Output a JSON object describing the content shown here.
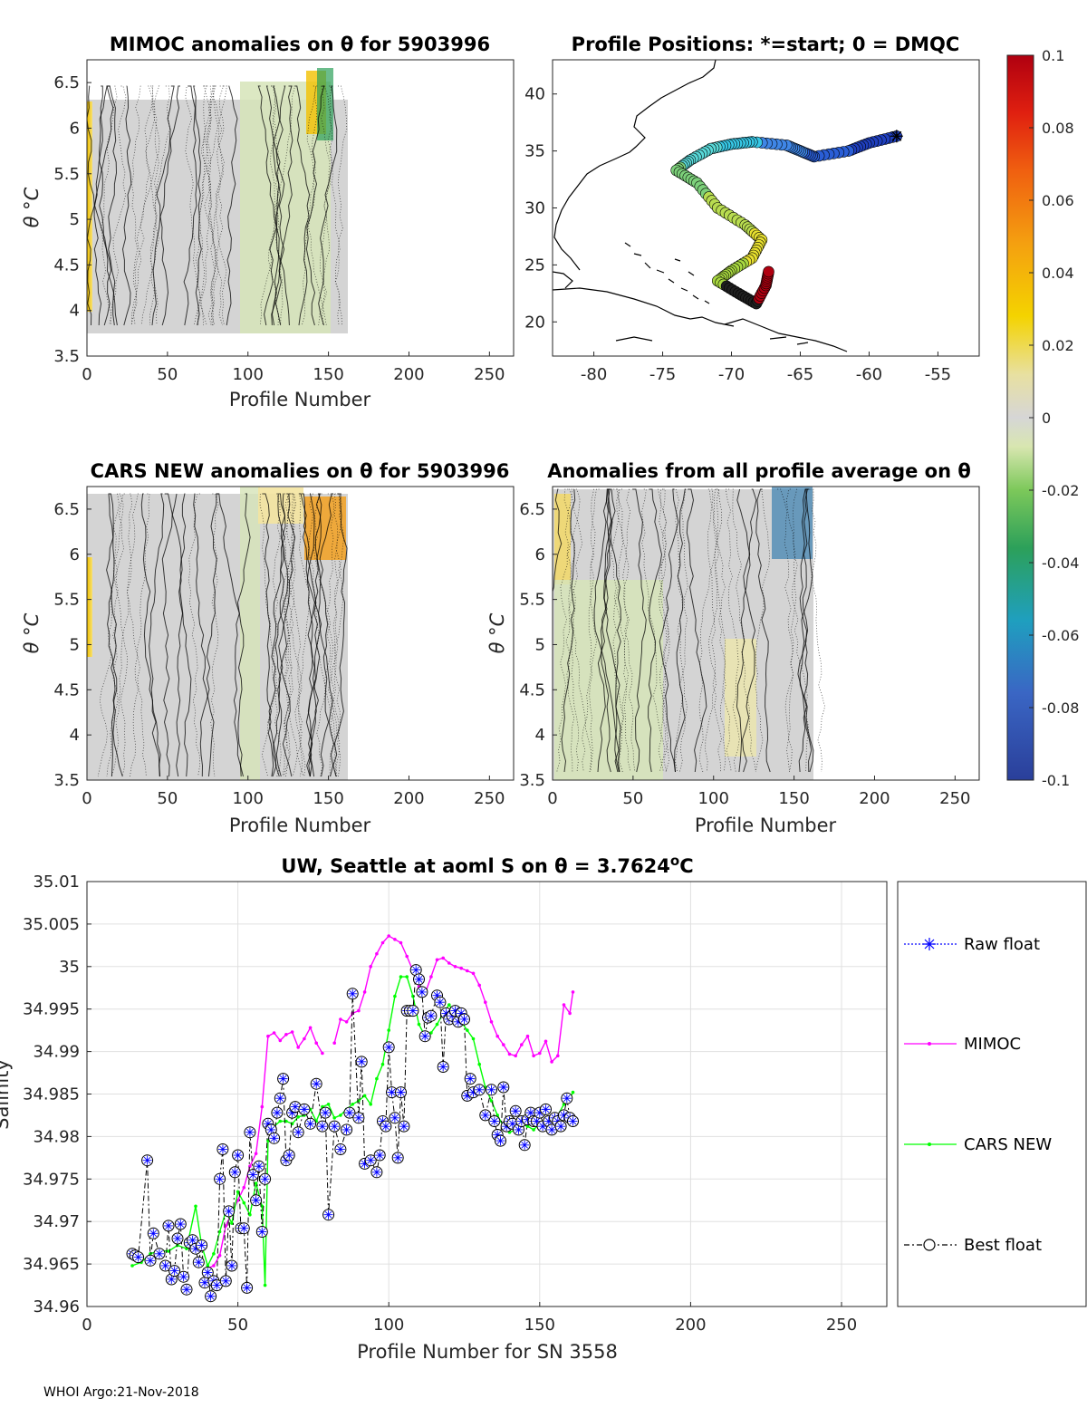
{
  "footer": "WHOI Argo:21-Nov-2018",
  "colors": {
    "raw_float": "#0000ff",
    "mimoc": "#ff00ff",
    "cars_new": "#00ff00",
    "best_float": "#000000"
  },
  "chart_data": [
    {
      "id": "mimoc_anom",
      "type": "heatmap",
      "title": "MIMOC anomalies on θ  for 5903996",
      "xlabel": "Profile Number",
      "ylabel": "θ °C",
      "xlim": [
        0,
        265
      ],
      "ylim": [
        3.5,
        6.75
      ],
      "xticks": [
        "0",
        "50",
        "100",
        "150",
        "200",
        "250"
      ],
      "yticks": [
        "3.5",
        "4",
        "4.5",
        "5",
        "5.5",
        "6",
        "6.5"
      ],
      "data_extent_profiles": [
        0,
        162
      ]
    },
    {
      "id": "positions",
      "type": "scatter",
      "title": "Profile Positions: *=start; 0 = DMQC",
      "xlabel": "",
      "ylabel": "",
      "xlim": [
        -83,
        -52
      ],
      "ylim": [
        17,
        43
      ],
      "xticks": [
        "-80",
        "-75",
        "-70",
        "-65",
        "-60",
        "-55"
      ],
      "yticks": [
        "20",
        "25",
        "30",
        "35",
        "40"
      ],
      "start_lon_lat": [
        -58,
        36.3
      ]
    },
    {
      "id": "colorbar",
      "type": "colorbar",
      "ticks": [
        "0.1",
        "0.08",
        "0.06",
        "0.04",
        "0.02",
        "0",
        "-0.02",
        "-0.04",
        "-0.06",
        "-0.08",
        "-0.1"
      ],
      "range": [
        -0.1,
        0.1
      ]
    },
    {
      "id": "cars_anom",
      "type": "heatmap",
      "title": "CARS NEW anomalies on θ for 5903996",
      "xlabel": "Profile Number",
      "ylabel": "θ °C",
      "xlim": [
        0,
        265
      ],
      "ylim": [
        3.5,
        6.75
      ],
      "xticks": [
        "0",
        "50",
        "100",
        "150",
        "200",
        "250"
      ],
      "yticks": [
        "3.5",
        "4",
        "4.5",
        "5",
        "5.5",
        "6",
        "6.5"
      ],
      "data_extent_profiles": [
        0,
        162
      ]
    },
    {
      "id": "avg_anom",
      "type": "heatmap",
      "title": "Anomalies from all profile average on θ",
      "xlabel": "Profile Number",
      "ylabel": "θ °C",
      "xlim": [
        0,
        265
      ],
      "ylim": [
        3.5,
        6.75
      ],
      "xticks": [
        "0",
        "50",
        "100",
        "150",
        "200",
        "250"
      ],
      "yticks": [
        "3.5",
        "4",
        "4.5",
        "5",
        "5.5",
        "6",
        "6.5"
      ],
      "data_extent_profiles": [
        0,
        162
      ]
    },
    {
      "id": "salinity",
      "type": "line",
      "title": "UW, Seattle at aoml S on θ = 3.7624",
      "title_sup": "o",
      "title_unit": "C",
      "xlabel": "Profile Number for SN 3558",
      "ylabel": "Salinity",
      "xlim": [
        0,
        265
      ],
      "ylim": [
        34.96,
        35.01
      ],
      "xticks": [
        "0",
        "50",
        "100",
        "150",
        "200",
        "250"
      ],
      "yticks": [
        "35.01",
        "35.005",
        "35",
        "34.995",
        "34.99",
        "34.985",
        "34.98",
        "34.975",
        "34.97",
        "34.965",
        "34.96"
      ],
      "legend": [
        "Raw float",
        "MIMOC",
        "CARS NEW",
        "Best float"
      ],
      "series": [
        {
          "name": "MIMOC",
          "x": [
            40,
            42,
            44,
            46,
            48,
            50,
            52,
            54,
            56,
            58,
            60,
            62,
            64,
            66,
            68,
            70,
            72,
            74,
            76,
            78,
            80,
            82,
            84,
            86,
            88,
            90,
            92,
            94,
            96,
            98,
            100,
            102,
            104,
            106,
            108,
            110,
            112,
            114,
            116,
            118,
            120,
            122,
            124,
            126,
            128,
            130,
            132,
            134,
            136,
            138,
            140,
            142,
            144,
            146,
            148,
            150,
            152,
            154,
            156,
            158,
            160,
            161
          ],
          "values": [
            34.9645,
            34.9648,
            34.966,
            34.9695,
            34.971,
            34.9725,
            34.974,
            34.9765,
            34.978,
            34.9835,
            34.9918,
            34.9922,
            34.9913,
            34.992,
            34.9923,
            34.9905,
            34.9915,
            34.9928,
            34.991,
            34.9898,
            null,
            34.991,
            34.9938,
            34.9935,
            34.9945,
            34.9948,
            34.997,
            35.0,
            35.0015,
            35.0028,
            35.0036,
            35.0032,
            35.0028,
            35.0012,
            34.9995,
            34.9976,
            34.9968,
            34.9988,
            35.0008,
            35.001,
            35.0004,
            35.0,
            34.9998,
            34.9995,
            34.9992,
            34.9978,
            34.9958,
            34.9935,
            34.9918,
            34.9908,
            34.9897,
            34.9895,
            34.9908,
            34.9918,
            34.9895,
            34.9898,
            34.9912,
            34.9888,
            34.9895,
            34.9955,
            34.9945,
            34.997
          ]
        },
        {
          "name": "CARS NEW",
          "x": [
            15,
            18,
            21,
            24,
            27,
            30,
            33,
            36,
            38,
            40,
            42,
            44,
            46,
            48,
            50,
            52,
            54,
            56,
            58,
            59,
            60,
            62,
            64,
            66,
            68,
            70,
            72,
            74,
            76,
            78,
            80,
            82,
            84,
            86,
            88,
            90,
            92,
            94,
            96,
            98,
            100,
            102,
            104,
            106,
            108,
            110,
            112,
            114,
            116,
            118,
            120,
            122,
            124,
            126,
            128,
            130,
            132,
            134,
            136,
            138,
            140,
            142,
            144,
            146,
            148,
            150,
            152,
            154,
            156,
            158,
            160,
            161
          ],
          "values": [
            34.9648,
            34.9652,
            34.9662,
            34.9666,
            34.9665,
            34.9672,
            34.9668,
            34.9718,
            34.9672,
            34.9648,
            34.9662,
            34.9688,
            34.9712,
            34.9698,
            34.9735,
            34.9722,
            34.9708,
            34.9745,
            34.9718,
            34.9625,
            34.9795,
            34.9812,
            34.9818,
            34.9818,
            34.9815,
            34.9823,
            34.9825,
            34.9832,
            34.9818,
            34.9835,
            34.9838,
            34.9822,
            34.9825,
            34.9832,
            34.9838,
            34.9842,
            34.9848,
            34.9838,
            34.9868,
            34.9885,
            34.9925,
            34.9965,
            34.9988,
            34.9988,
            34.9965,
            34.9932,
            34.9918,
            34.9922,
            34.9932,
            34.9945,
            34.9955,
            34.9944,
            34.9935,
            34.9925,
            34.9915,
            34.9885,
            34.9858,
            34.9842,
            34.9825,
            34.9812,
            34.9805,
            34.9808,
            34.9815,
            34.9812,
            34.9808,
            34.9815,
            34.9818,
            34.9812,
            34.9825,
            34.9838,
            34.9845,
            34.9852
          ]
        },
        {
          "name": "Best float",
          "x": [
            15,
            16,
            17,
            20,
            21,
            22,
            24,
            26,
            27,
            28,
            29,
            30,
            31,
            32,
            33,
            34,
            35,
            36,
            37,
            38,
            39,
            40,
            41,
            42,
            43,
            44,
            45,
            46,
            47,
            48,
            49,
            50,
            51,
            52,
            53,
            54,
            55,
            56,
            57,
            58,
            59,
            60,
            61,
            62,
            63,
            64,
            65,
            66,
            67,
            68,
            69,
            70,
            72,
            74,
            76,
            78,
            79,
            80,
            82,
            84,
            86,
            87,
            88,
            90,
            91,
            92,
            94,
            96,
            97,
            98,
            99,
            100,
            101,
            102,
            103,
            104,
            105,
            106,
            107,
            108,
            109,
            110,
            111,
            112,
            113,
            114,
            116,
            117,
            118,
            119,
            120,
            121,
            122,
            123,
            124,
            125,
            126,
            127,
            128,
            130,
            132,
            134,
            135,
            136,
            137,
            138,
            139,
            140,
            141,
            142,
            143,
            144,
            145,
            146,
            147,
            148,
            149,
            150,
            151,
            152,
            153,
            154,
            155,
            156,
            157,
            158,
            159,
            160,
            161
          ],
          "values": [
            34.9662,
            34.966,
            34.9658,
            34.9772,
            34.9654,
            34.9686,
            34.9662,
            34.9648,
            34.9695,
            34.9632,
            34.9642,
            34.968,
            34.9697,
            34.9635,
            34.962,
            34.9675,
            34.9678,
            34.9668,
            34.9652,
            34.9672,
            34.9628,
            34.964,
            34.9612,
            34.963,
            34.9625,
            34.975,
            34.9785,
            34.963,
            34.9712,
            34.9648,
            34.9758,
            34.9778,
            34.9692,
            34.9692,
            34.9622,
            34.9805,
            34.9755,
            34.9725,
            34.9765,
            34.9688,
            34.975,
            34.9815,
            34.9808,
            34.9798,
            34.9828,
            34.9845,
            34.9868,
            34.9772,
            34.9778,
            34.9828,
            34.9835,
            34.9805,
            34.9832,
            34.9815,
            34.9862,
            34.9812,
            34.9828,
            34.9708,
            34.9812,
            34.9785,
            34.9808,
            34.9828,
            34.9968,
            34.9822,
            34.9888,
            34.9768,
            34.9772,
            34.9758,
            34.9778,
            34.9818,
            34.9812,
            34.9905,
            34.9852,
            34.9822,
            34.9775,
            34.9852,
            34.9812,
            34.9948,
            34.9948,
            34.9948,
            34.9996,
            34.9985,
            34.997,
            34.9918,
            34.994,
            34.9942,
            34.9966,
            34.9958,
            34.9882,
            34.9945,
            34.9938,
            34.9942,
            34.9948,
            34.9935,
            34.9945,
            34.9938,
            34.9848,
            34.9868,
            34.9852,
            34.9855,
            34.9825,
            34.9855,
            34.9818,
            34.9802,
            34.9795,
            34.9858,
            34.9812,
            34.9818,
            34.9815,
            34.983,
            34.9808,
            34.9818,
            34.979,
            34.982,
            34.9828,
            34.9818,
            34.9818,
            34.9828,
            34.9812,
            34.9832,
            34.9818,
            34.9808,
            34.9822,
            34.9818,
            34.9812,
            34.9825,
            34.9845,
            34.9822,
            34.9818
          ]
        }
      ]
    }
  ]
}
